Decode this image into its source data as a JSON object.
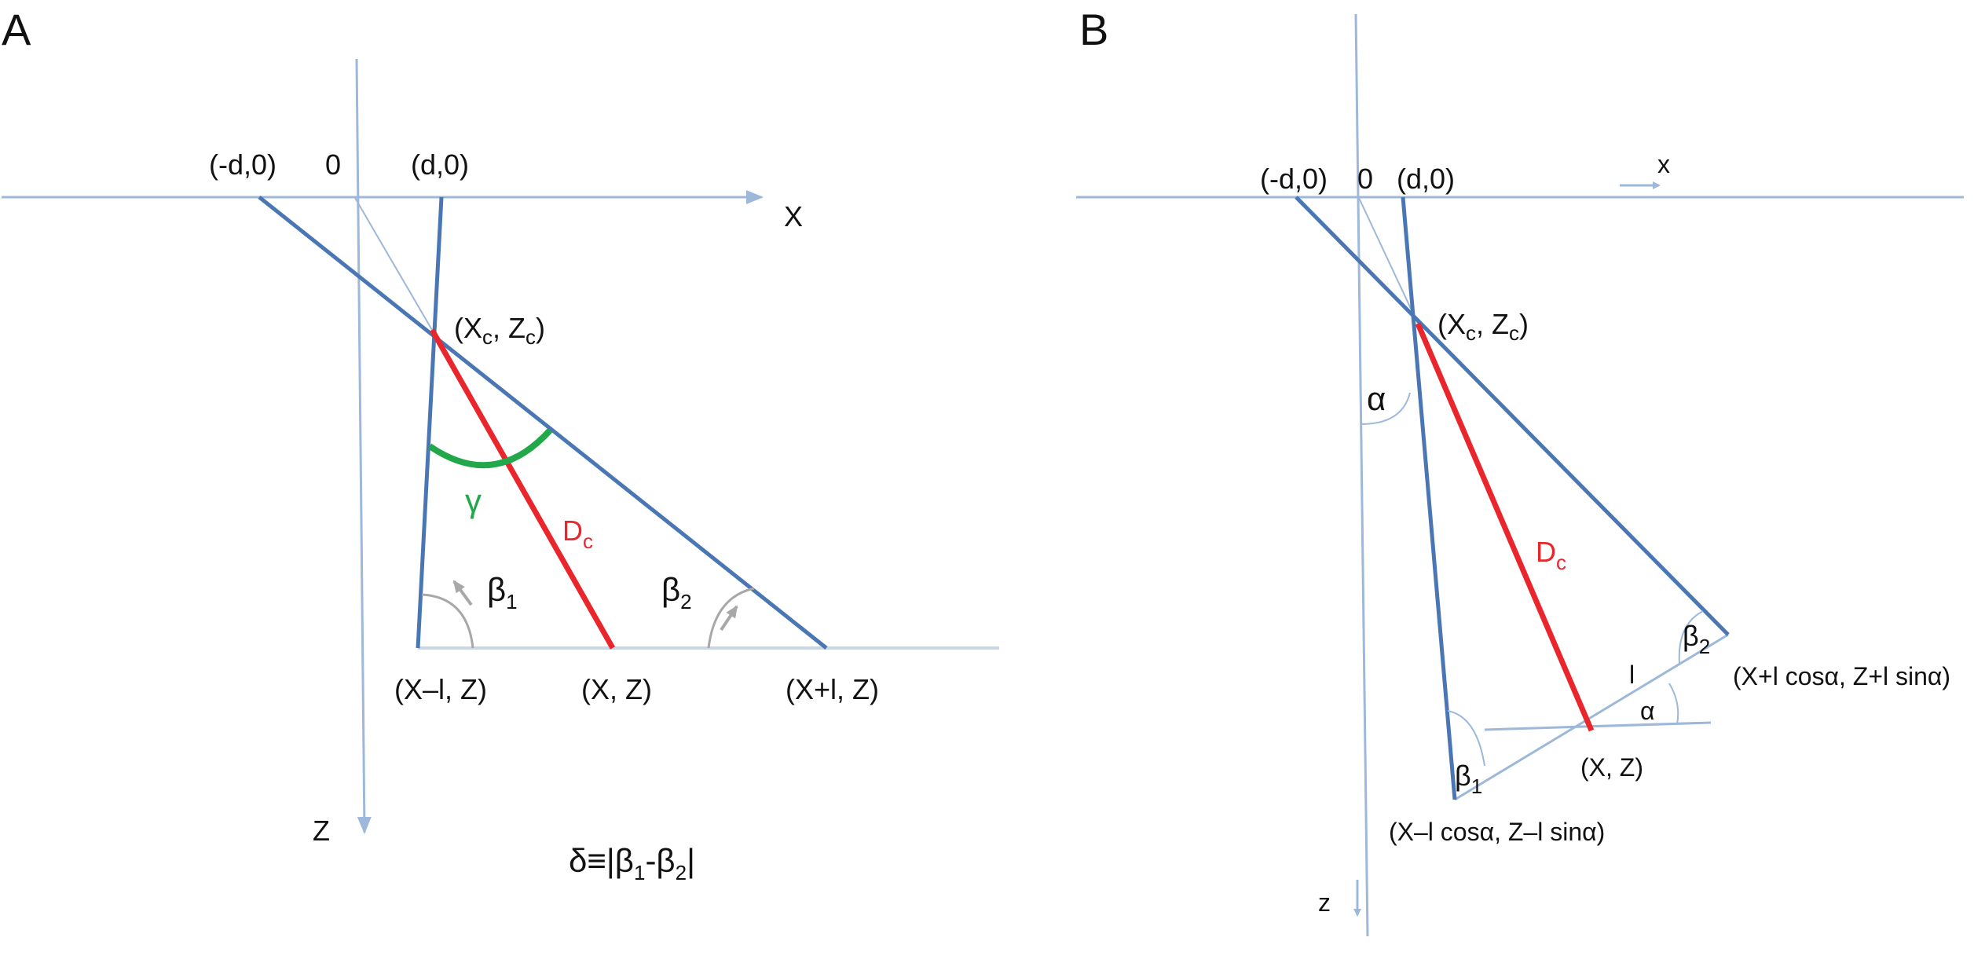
{
  "colors": {
    "axis": "#9db8d9",
    "ray": "#4a77b4",
    "dc": "#e8262b",
    "gamma": "#22a84a",
    "angle_arc": "#a8a8a8",
    "baseline": "#c8d6e6"
  },
  "panel_a": {
    "letter": "A",
    "x_axis_label": "X",
    "z_axis_label": "Z",
    "origin_label": "0",
    "left_source": "(-d,0)",
    "right_source": "(d,0)",
    "center": {
      "open": "(X",
      "sub1": "c",
      "mid": ", Z",
      "sub2": "c",
      "close": ")"
    },
    "gamma": "γ",
    "dc": {
      "main": "D",
      "sub": "c"
    },
    "beta1": {
      "main": "β",
      "sub": "1"
    },
    "beta2": {
      "main": "β",
      "sub": "2"
    },
    "point_left": "(X–l, Z)",
    "point_mid": "(X, Z)",
    "point_right": "(X+l, Z)",
    "formula": {
      "p1": "δ≡|β",
      "s1": "1",
      "p2": "-β",
      "s2": "2",
      "p3": "|"
    }
  },
  "panel_b": {
    "letter": "B",
    "x_axis_label": "x",
    "z_axis_label": "z",
    "origin_label": "0",
    "left_source": "(-d,0)",
    "right_source": "(d,0)",
    "center": {
      "open": "(X",
      "sub1": "c",
      "mid": ", Z",
      "sub2": "c",
      "close": ")"
    },
    "alpha_top": "α",
    "dc": {
      "main": "D",
      "sub": "c"
    },
    "beta1": {
      "main": "β",
      "sub": "1"
    },
    "beta2": {
      "main": "β",
      "sub": "2"
    },
    "length_l": "l",
    "alpha_bottom": "α",
    "point_mid": "(X, Z)",
    "point_right": "(X+l cosα, Z+l sinα)",
    "point_left": "(X–l cosα, Z–l sinα)"
  }
}
